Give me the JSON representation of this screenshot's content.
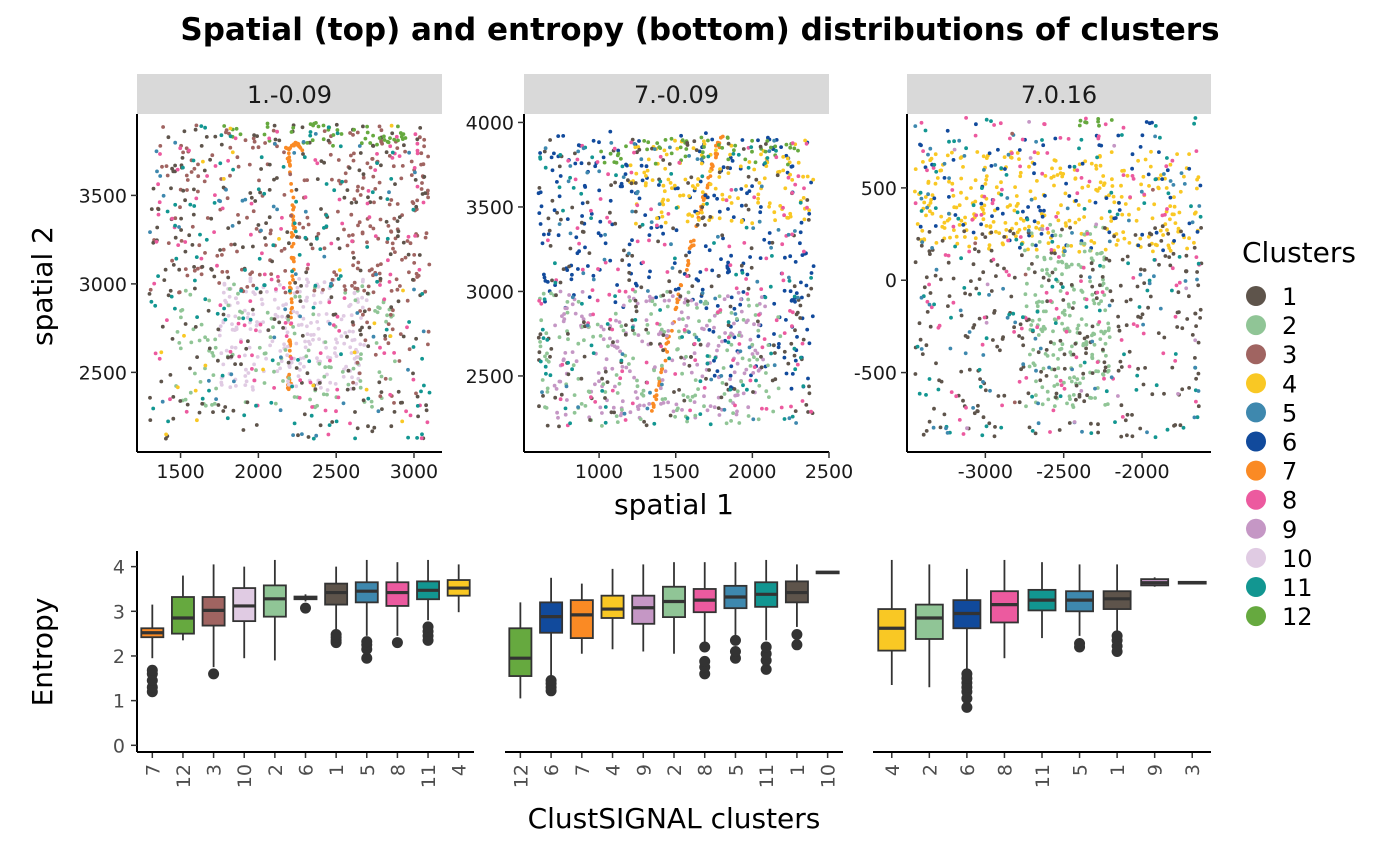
{
  "title": "Spatial (top) and entropy (bottom) distributions of clusters",
  "chart_data": [
    {
      "type": "scatter",
      "facet": "1.-0.09",
      "xlabel": "spatial 1",
      "ylabel": "spatial 2",
      "xlim": [
        1220,
        3180
      ],
      "ylim": [
        2050,
        3960
      ],
      "xticks": [
        1500,
        2000,
        2500,
        3000
      ],
      "yticks": [
        2500,
        3000,
        3500
      ],
      "regions": [
        {
          "cluster": "7",
          "shape": "path",
          "path": [
            [
              2195,
              2400
            ],
            [
              2205,
              2700
            ],
            [
              2215,
              3000
            ],
            [
              2225,
              3300
            ],
            [
              2215,
              3550
            ],
            [
              2185,
              3760
            ],
            [
              2240,
              3800
            ],
            [
              2280,
              3760
            ]
          ],
          "n": 90
        },
        {
          "cluster": "10",
          "x": [
            1750,
            2700
          ],
          "y": [
            2400,
            3050
          ],
          "n": 230
        },
        {
          "cluster": "2",
          "x": [
            1450,
            2900
          ],
          "y": [
            2300,
            3000
          ],
          "n": 120
        },
        {
          "cluster": "3",
          "x": [
            1300,
            3100
          ],
          "y": [
            2950,
            3900
          ],
          "n": 210
        },
        {
          "cluster": "3",
          "x": [
            2600,
            3100
          ],
          "y": [
            2300,
            3900
          ],
          "n": 80
        },
        {
          "cluster": "1",
          "x": [
            1300,
            3100
          ],
          "y": [
            2120,
            3900
          ],
          "n": 240
        },
        {
          "cluster": "12",
          "x": [
            1750,
            2950
          ],
          "y": [
            3780,
            3910
          ],
          "n": 50
        },
        {
          "cluster": "8",
          "x": [
            1300,
            3100
          ],
          "y": [
            2120,
            3900
          ],
          "n": 120
        },
        {
          "cluster": "11",
          "x": [
            1300,
            3100
          ],
          "y": [
            2120,
            3900
          ],
          "n": 110
        },
        {
          "cluster": "5",
          "x": [
            1300,
            3100
          ],
          "y": [
            2120,
            3900
          ],
          "n": 50
        },
        {
          "cluster": "4",
          "x": [
            1300,
            3100
          ],
          "y": [
            2120,
            3900
          ],
          "n": 22
        }
      ]
    },
    {
      "type": "scatter",
      "facet": "7.-0.09",
      "xlabel": "spatial 1",
      "ylabel": "",
      "xlim": [
        510,
        2500
      ],
      "ylim": [
        2050,
        4050
      ],
      "xticks": [
        1000,
        1500,
        2000,
        2500
      ],
      "yticks": [
        2500,
        3000,
        3500,
        4000
      ],
      "regions": [
        {
          "cluster": "7",
          "shape": "path",
          "path": [
            [
              1330,
              2220
            ],
            [
              1400,
              2500
            ],
            [
              1460,
              2750
            ],
            [
              1530,
              3000
            ],
            [
              1600,
              3250
            ],
            [
              1680,
              3550
            ],
            [
              1760,
              3800
            ],
            [
              1800,
              3930
            ]
          ],
          "n": 80
        },
        {
          "cluster": "6",
          "x": [
            600,
            2400
          ],
          "y": [
            2900,
            3950
          ],
          "n": 210
        },
        {
          "cluster": "6",
          "x": [
            1700,
            2400
          ],
          "y": [
            2400,
            3200
          ],
          "n": 60
        },
        {
          "cluster": "4",
          "x": [
            1200,
            2400
          ],
          "y": [
            3400,
            3900
          ],
          "n": 130
        },
        {
          "cluster": "12",
          "x": [
            1000,
            2300
          ],
          "y": [
            3750,
            3920
          ],
          "n": 55
        },
        {
          "cluster": "9",
          "x": [
            700,
            2100
          ],
          "y": [
            2250,
            3000
          ],
          "n": 200
        },
        {
          "cluster": "2",
          "x": [
            600,
            2200
          ],
          "y": [
            2200,
            3000
          ],
          "n": 160
        },
        {
          "cluster": "1",
          "x": [
            600,
            2400
          ],
          "y": [
            2200,
            3900
          ],
          "n": 190
        },
        {
          "cluster": "8",
          "x": [
            600,
            2400
          ],
          "y": [
            2200,
            3900
          ],
          "n": 120
        },
        {
          "cluster": "11",
          "x": [
            600,
            2400
          ],
          "y": [
            2200,
            3900
          ],
          "n": 90
        },
        {
          "cluster": "5",
          "x": [
            600,
            2400
          ],
          "y": [
            2200,
            3900
          ],
          "n": 70
        }
      ]
    },
    {
      "type": "scatter",
      "facet": "7.0.16",
      "xlabel": "spatial 1",
      "ylabel": "",
      "xlim": [
        -3500,
        -1560
      ],
      "ylim": [
        -930,
        900
      ],
      "xticks": [
        -3000,
        -2500,
        -2000
      ],
      "yticks": [
        -500,
        0,
        500
      ],
      "regions": [
        {
          "cluster": "4",
          "x": [
            -3450,
            -1620
          ],
          "y": [
            150,
            700
          ],
          "n": 300
        },
        {
          "cluster": "6",
          "x": [
            -3450,
            -1620
          ],
          "y": [
            150,
            880
          ],
          "n": 90
        },
        {
          "cluster": "2",
          "x": [
            -2750,
            -2200
          ],
          "y": [
            -700,
            300
          ],
          "n": 200
        },
        {
          "cluster": "1",
          "x": [
            -3450,
            -1620
          ],
          "y": [
            -850,
            300
          ],
          "n": 260
        },
        {
          "cluster": "8",
          "x": [
            -3450,
            -1620
          ],
          "y": [
            -850,
            880
          ],
          "n": 120
        },
        {
          "cluster": "11",
          "x": [
            -3450,
            -1620
          ],
          "y": [
            -850,
            880
          ],
          "n": 100
        },
        {
          "cluster": "5",
          "x": [
            -3450,
            -1620
          ],
          "y": [
            -850,
            880
          ],
          "n": 80
        },
        {
          "cluster": "12",
          "x": [
            -2400,
            -2100
          ],
          "y": [
            820,
            880
          ],
          "n": 8
        },
        {
          "cluster": "9",
          "x": [
            -3450,
            -1620
          ],
          "y": [
            -850,
            880
          ],
          "n": 15
        },
        {
          "cluster": "3",
          "x": [
            -3450,
            -1620
          ],
          "y": [
            -850,
            880
          ],
          "n": 5
        }
      ]
    },
    {
      "type": "box",
      "facet": "1.-0.09",
      "xlabel": "ClustSIGNAL clusters",
      "ylabel": "Entropy",
      "ylim": [
        -0.15,
        4.35
      ],
      "yticks": [
        0,
        1,
        2,
        3,
        4
      ],
      "categories": [
        "7",
        "12",
        "3",
        "10",
        "2",
        "6",
        "1",
        "5",
        "8",
        "11",
        "4"
      ],
      "boxes": [
        {
          "cluster": "7",
          "q1": 2.42,
          "median": 2.52,
          "q3": 2.62,
          "lo": 1.95,
          "hi": 3.15,
          "outliers": [
            1.2,
            1.3,
            1.45,
            1.6,
            1.68
          ]
        },
        {
          "cluster": "12",
          "q1": 2.5,
          "median": 2.85,
          "q3": 3.32,
          "lo": 2.35,
          "hi": 3.8,
          "outliers": []
        },
        {
          "cluster": "3",
          "q1": 2.68,
          "median": 3.02,
          "q3": 3.32,
          "lo": 1.75,
          "hi": 4.05,
          "outliers": [
            1.6
          ]
        },
        {
          "cluster": "10",
          "q1": 2.78,
          "median": 3.12,
          "q3": 3.52,
          "lo": 1.95,
          "hi": 4.0,
          "outliers": []
        },
        {
          "cluster": "2",
          "q1": 2.88,
          "median": 3.28,
          "q3": 3.58,
          "lo": 1.9,
          "hi": 4.15,
          "outliers": []
        },
        {
          "cluster": "6",
          "q1": 3.27,
          "median": 3.3,
          "q3": 3.33,
          "lo": 3.22,
          "hi": 3.38,
          "outliers": [
            3.07
          ]
        },
        {
          "cluster": "1",
          "q1": 3.15,
          "median": 3.42,
          "q3": 3.62,
          "lo": 2.55,
          "hi": 4.0,
          "outliers": [
            2.3,
            2.35,
            2.42,
            2.48
          ]
        },
        {
          "cluster": "5",
          "q1": 3.2,
          "median": 3.45,
          "q3": 3.65,
          "lo": 2.45,
          "hi": 4.15,
          "outliers": [
            1.95,
            2.15,
            2.25,
            2.32
          ]
        },
        {
          "cluster": "8",
          "q1": 3.12,
          "median": 3.42,
          "q3": 3.65,
          "lo": 2.45,
          "hi": 4.1,
          "outliers": [
            2.3
          ]
        },
        {
          "cluster": "11",
          "q1": 3.27,
          "median": 3.47,
          "q3": 3.67,
          "lo": 2.8,
          "hi": 4.15,
          "outliers": [
            2.35,
            2.45,
            2.55,
            2.65
          ]
        },
        {
          "cluster": "4",
          "q1": 3.35,
          "median": 3.52,
          "q3": 3.7,
          "lo": 2.98,
          "hi": 4.05,
          "outliers": []
        }
      ]
    },
    {
      "type": "box",
      "facet": "7.-0.09",
      "xlabel": "ClustSIGNAL clusters",
      "ylabel": "",
      "ylim": [
        -0.15,
        4.35
      ],
      "categories": [
        "12",
        "6",
        "7",
        "4",
        "9",
        "2",
        "8",
        "5",
        "11",
        "1",
        "10"
      ],
      "boxes": [
        {
          "cluster": "12",
          "q1": 1.55,
          "median": 1.95,
          "q3": 2.62,
          "lo": 1.05,
          "hi": 3.2,
          "outliers": []
        },
        {
          "cluster": "6",
          "q1": 2.52,
          "median": 2.88,
          "q3": 3.2,
          "lo": 1.55,
          "hi": 3.75,
          "outliers": [
            1.22,
            1.3,
            1.38,
            1.45
          ]
        },
        {
          "cluster": "7",
          "q1": 2.4,
          "median": 2.92,
          "q3": 3.25,
          "lo": 2.05,
          "hi": 3.62,
          "outliers": []
        },
        {
          "cluster": "4",
          "q1": 2.85,
          "median": 3.05,
          "q3": 3.35,
          "lo": 2.15,
          "hi": 3.95,
          "outliers": []
        },
        {
          "cluster": "9",
          "q1": 2.72,
          "median": 3.08,
          "q3": 3.35,
          "lo": 2.1,
          "hi": 4.05,
          "outliers": []
        },
        {
          "cluster": "2",
          "q1": 2.87,
          "median": 3.22,
          "q3": 3.55,
          "lo": 2.05,
          "hi": 4.1,
          "outliers": []
        },
        {
          "cluster": "8",
          "q1": 2.98,
          "median": 3.25,
          "q3": 3.5,
          "lo": 2.28,
          "hi": 4.1,
          "outliers": [
            1.6,
            1.75,
            1.88,
            2.2
          ]
        },
        {
          "cluster": "5",
          "q1": 3.07,
          "median": 3.32,
          "q3": 3.57,
          "lo": 2.45,
          "hi": 4.1,
          "outliers": [
            1.95,
            2.1,
            2.35
          ]
        },
        {
          "cluster": "11",
          "q1": 3.1,
          "median": 3.38,
          "q3": 3.65,
          "lo": 2.35,
          "hi": 4.15,
          "outliers": [
            1.7,
            1.9,
            2.05,
            2.2
          ]
        },
        {
          "cluster": "1",
          "q1": 3.2,
          "median": 3.42,
          "q3": 3.67,
          "lo": 2.65,
          "hi": 4.05,
          "outliers": [
            2.25,
            2.48
          ]
        },
        {
          "cluster": "10",
          "q1": 3.85,
          "median": 3.87,
          "q3": 3.89,
          "lo": 3.85,
          "hi": 3.89,
          "outliers": []
        }
      ]
    },
    {
      "type": "box",
      "facet": "7.0.16",
      "xlabel": "ClustSIGNAL clusters",
      "ylabel": "",
      "ylim": [
        -0.15,
        4.35
      ],
      "categories": [
        "4",
        "2",
        "6",
        "8",
        "11",
        "5",
        "1",
        "9",
        "3"
      ],
      "boxes": [
        {
          "cluster": "4",
          "q1": 2.12,
          "median": 2.62,
          "q3": 3.05,
          "lo": 1.35,
          "hi": 4.15,
          "outliers": []
        },
        {
          "cluster": "2",
          "q1": 2.38,
          "median": 2.85,
          "q3": 3.15,
          "lo": 1.3,
          "hi": 4.05,
          "outliers": []
        },
        {
          "cluster": "6",
          "q1": 2.62,
          "median": 2.95,
          "q3": 3.25,
          "lo": 1.7,
          "hi": 3.95,
          "outliers": [
            0.85,
            1.05,
            1.2,
            1.3,
            1.4,
            1.5,
            1.6
          ]
        },
        {
          "cluster": "8",
          "q1": 2.75,
          "median": 3.15,
          "q3": 3.45,
          "lo": 1.95,
          "hi": 4.15,
          "outliers": []
        },
        {
          "cluster": "11",
          "q1": 3.02,
          "median": 3.25,
          "q3": 3.48,
          "lo": 2.4,
          "hi": 4.1,
          "outliers": []
        },
        {
          "cluster": "5",
          "q1": 3.0,
          "median": 3.25,
          "q3": 3.45,
          "lo": 2.45,
          "hi": 4.05,
          "outliers": [
            2.2,
            2.28
          ]
        },
        {
          "cluster": "1",
          "q1": 3.05,
          "median": 3.28,
          "q3": 3.45,
          "lo": 2.55,
          "hi": 4.05,
          "outliers": [
            2.1,
            2.22,
            2.35,
            2.45
          ]
        },
        {
          "cluster": "9",
          "q1": 3.58,
          "median": 3.64,
          "q3": 3.72,
          "lo": 3.55,
          "hi": 3.76,
          "outliers": []
        },
        {
          "cluster": "3",
          "q1": 3.62,
          "median": 3.64,
          "q3": 3.66,
          "lo": 3.62,
          "hi": 3.66,
          "outliers": []
        }
      ]
    }
  ],
  "legend": {
    "title": "Clusters",
    "placement": "right",
    "items": [
      {
        "label": "1",
        "color": "#5E544B"
      },
      {
        "label": "2",
        "color": "#90C596"
      },
      {
        "label": "3",
        "color": "#A06461"
      },
      {
        "label": "4",
        "color": "#F9C824"
      },
      {
        "label": "5",
        "color": "#3E88AE"
      },
      {
        "label": "6",
        "color": "#114A9C"
      },
      {
        "label": "7",
        "color": "#FA8A24"
      },
      {
        "label": "8",
        "color": "#EC5A9F"
      },
      {
        "label": "9",
        "color": "#C597C5"
      },
      {
        "label": "10",
        "color": "#E0CBE3"
      },
      {
        "label": "11",
        "color": "#129691"
      },
      {
        "label": "12",
        "color": "#66A93F"
      }
    ]
  }
}
